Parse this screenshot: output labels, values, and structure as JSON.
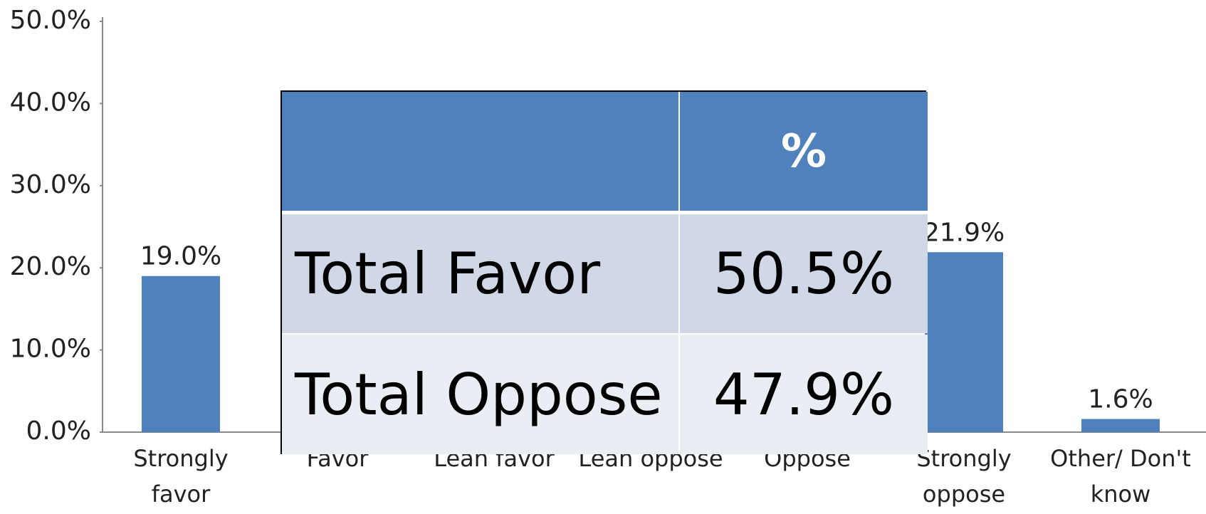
{
  "chart_data": {
    "type": "bar",
    "categories": [
      "Strongly favor",
      "Favor",
      "Lean favor",
      "Lean oppose",
      "Oppose",
      "Strongly oppose",
      "Other/ Don't know"
    ],
    "values": [
      19.0,
      null,
      null,
      null,
      null,
      21.9,
      1.6
    ],
    "value_labels": [
      "19.0%",
      null,
      null,
      null,
      null,
      "21.9%",
      "1.6%"
    ],
    "color": "#4f81bd",
    "ylim": [
      0,
      50
    ],
    "yticks": [
      {
        "value": 0,
        "label": "0.0%"
      },
      {
        "value": 10,
        "label": "10.0%"
      },
      {
        "value": 20,
        "label": "20.0%"
      },
      {
        "value": 30,
        "label": "30.0%"
      },
      {
        "value": 40,
        "label": "40.0%"
      },
      {
        "value": 50,
        "label": "50.0%"
      }
    ]
  },
  "table": {
    "header": "%",
    "rows": [
      [
        "Total Favor",
        "50.5%"
      ],
      [
        "Total Oppose",
        "47.9%"
      ]
    ]
  }
}
